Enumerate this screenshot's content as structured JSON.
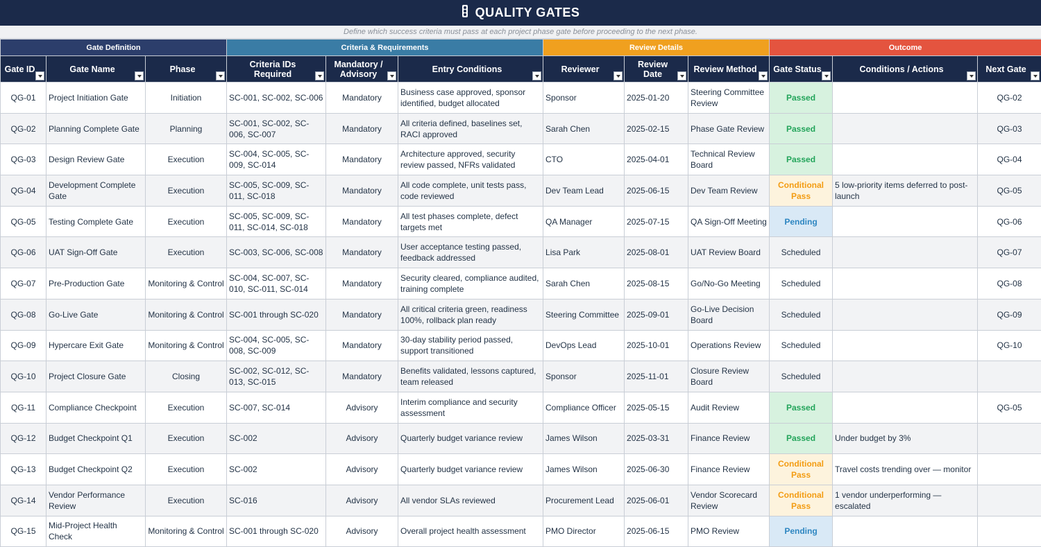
{
  "title": "QUALITY GATES",
  "title_icon": "traffic-light-icon",
  "subtitle": "Define which success criteria must pass at each project phase gate before proceeding to the next phase.",
  "colors": {
    "header_navy": "#1b2a4a",
    "group_definition": "#2c3e6b",
    "group_criteria": "#3a7ca5",
    "group_review": "#f0a01f",
    "group_outcome": "#e4543f",
    "passed": "#22a45a",
    "conditional": "#f39c12",
    "pending": "#2e86c1"
  },
  "groups": [
    {
      "label": "Gate Definition"
    },
    {
      "label": "Criteria & Requirements"
    },
    {
      "label": "Review Details"
    },
    {
      "label": "Outcome"
    }
  ],
  "columns": [
    "Gate ID",
    "Gate Name",
    "Phase",
    "Criteria IDs Required",
    "Mandatory / Advisory",
    "Entry Conditions",
    "Reviewer",
    "Review Date",
    "Review Method",
    "Gate Status",
    "Conditions / Actions",
    "Next Gate"
  ],
  "rows": [
    {
      "id": "QG-01",
      "name": "Project Initiation Gate",
      "phase": "Initiation",
      "criteria": "SC-001, SC-002, SC-006",
      "type": "Mandatory",
      "entry": "Business case approved, sponsor identified, budget allocated",
      "reviewer": "Sponsor",
      "date": "2025-01-20",
      "method": "Steering Committee Review",
      "status": "Passed",
      "status_kind": "passed",
      "actions": "",
      "next": "QG-02"
    },
    {
      "id": "QG-02",
      "name": "Planning Complete Gate",
      "phase": "Planning",
      "criteria": "SC-001, SC-002, SC-006, SC-007",
      "type": "Mandatory",
      "entry": "All criteria defined, baselines set, RACI approved",
      "reviewer": "Sarah Chen",
      "date": "2025-02-15",
      "method": "Phase Gate Review",
      "status": "Passed",
      "status_kind": "passed",
      "actions": "",
      "next": "QG-03"
    },
    {
      "id": "QG-03",
      "name": "Design Review Gate",
      "phase": "Execution",
      "criteria": "SC-004, SC-005, SC-009, SC-014",
      "type": "Mandatory",
      "entry": "Architecture approved, security review passed, NFRs validated",
      "reviewer": "CTO",
      "date": "2025-04-01",
      "method": "Technical Review Board",
      "status": "Passed",
      "status_kind": "passed",
      "actions": "",
      "next": "QG-04"
    },
    {
      "id": "QG-04",
      "name": "Development Complete Gate",
      "phase": "Execution",
      "criteria": "SC-005, SC-009, SC-011, SC-018",
      "type": "Mandatory",
      "entry": "All code complete, unit tests pass, code reviewed",
      "reviewer": "Dev Team Lead",
      "date": "2025-06-15",
      "method": "Dev Team Review",
      "status": "Conditional Pass",
      "status_kind": "cond",
      "actions": "5 low-priority items deferred to post-launch",
      "next": "QG-05"
    },
    {
      "id": "QG-05",
      "name": "Testing Complete Gate",
      "phase": "Execution",
      "criteria": "SC-005, SC-009, SC-011, SC-014, SC-018",
      "type": "Mandatory",
      "entry": "All test phases complete, defect targets met",
      "reviewer": "QA Manager",
      "date": "2025-07-15",
      "method": "QA Sign-Off Meeting",
      "status": "Pending",
      "status_kind": "pending",
      "actions": "",
      "next": "QG-06"
    },
    {
      "id": "QG-06",
      "name": "UAT Sign-Off Gate",
      "phase": "Execution",
      "criteria": "SC-003, SC-006, SC-008",
      "type": "Mandatory",
      "entry": "User acceptance testing passed, feedback addressed",
      "reviewer": "Lisa Park",
      "date": "2025-08-01",
      "method": "UAT Review Board",
      "status": "Scheduled",
      "status_kind": "sched",
      "actions": "",
      "next": "QG-07"
    },
    {
      "id": "QG-07",
      "name": "Pre-Production Gate",
      "phase": "Monitoring & Control",
      "criteria": "SC-004, SC-007, SC-010, SC-011, SC-014",
      "type": "Mandatory",
      "entry": "Security cleared, compliance audited, training complete",
      "reviewer": "Sarah Chen",
      "date": "2025-08-15",
      "method": "Go/No-Go Meeting",
      "status": "Scheduled",
      "status_kind": "sched",
      "actions": "",
      "next": "QG-08"
    },
    {
      "id": "QG-08",
      "name": "Go-Live Gate",
      "phase": "Monitoring & Control",
      "criteria": "SC-001 through SC-020",
      "type": "Mandatory",
      "entry": "All critical criteria green, readiness 100%, rollback plan ready",
      "reviewer": "Steering Committee",
      "date": "2025-09-01",
      "method": "Go-Live Decision Board",
      "status": "Scheduled",
      "status_kind": "sched",
      "actions": "",
      "next": "QG-09"
    },
    {
      "id": "QG-09",
      "name": "Hypercare Exit Gate",
      "phase": "Monitoring & Control",
      "criteria": "SC-004, SC-005, SC-008, SC-009",
      "type": "Mandatory",
      "entry": "30-day stability period passed, support transitioned",
      "reviewer": "DevOps Lead",
      "date": "2025-10-01",
      "method": "Operations Review",
      "status": "Scheduled",
      "status_kind": "sched",
      "actions": "",
      "next": "QG-10"
    },
    {
      "id": "QG-10",
      "name": "Project Closure Gate",
      "phase": "Closing",
      "criteria": "SC-002, SC-012, SC-013, SC-015",
      "type": "Mandatory",
      "entry": "Benefits validated, lessons captured, team released",
      "reviewer": "Sponsor",
      "date": "2025-11-01",
      "method": "Closure Review Board",
      "status": "Scheduled",
      "status_kind": "sched",
      "actions": "",
      "next": ""
    },
    {
      "id": "QG-11",
      "name": "Compliance Checkpoint",
      "phase": "Execution",
      "criteria": "SC-007, SC-014",
      "type": "Advisory",
      "entry": "Interim compliance and security assessment",
      "reviewer": "Compliance Officer",
      "date": "2025-05-15",
      "method": "Audit Review",
      "status": "Passed",
      "status_kind": "passed",
      "actions": "",
      "next": "QG-05"
    },
    {
      "id": "QG-12",
      "name": "Budget Checkpoint Q1",
      "phase": "Execution",
      "criteria": "SC-002",
      "type": "Advisory",
      "entry": "Quarterly budget variance review",
      "reviewer": "James Wilson",
      "date": "2025-03-31",
      "method": "Finance Review",
      "status": "Passed",
      "status_kind": "passed",
      "actions": "Under budget by 3%",
      "next": ""
    },
    {
      "id": "QG-13",
      "name": "Budget Checkpoint Q2",
      "phase": "Execution",
      "criteria": "SC-002",
      "type": "Advisory",
      "entry": "Quarterly budget variance review",
      "reviewer": "James Wilson",
      "date": "2025-06-30",
      "method": "Finance Review",
      "status": "Conditional Pass",
      "status_kind": "cond",
      "actions": "Travel costs trending over — monitor",
      "next": ""
    },
    {
      "id": "QG-14",
      "name": "Vendor Performance Review",
      "phase": "Execution",
      "criteria": "SC-016",
      "type": "Advisory",
      "entry": "All vendor SLAs reviewed",
      "reviewer": "Procurement Lead",
      "date": "2025-06-01",
      "method": "Vendor Scorecard Review",
      "status": "Conditional Pass",
      "status_kind": "cond",
      "actions": "1 vendor underperforming — escalated",
      "next": ""
    },
    {
      "id": "QG-15",
      "name": "Mid-Project Health Check",
      "phase": "Monitoring & Control",
      "criteria": "SC-001 through SC-020",
      "type": "Advisory",
      "entry": "Overall project health assessment",
      "reviewer": "PMO Director",
      "date": "2025-06-15",
      "method": "PMO Review",
      "status": "Pending",
      "status_kind": "pending",
      "actions": "",
      "next": ""
    }
  ]
}
